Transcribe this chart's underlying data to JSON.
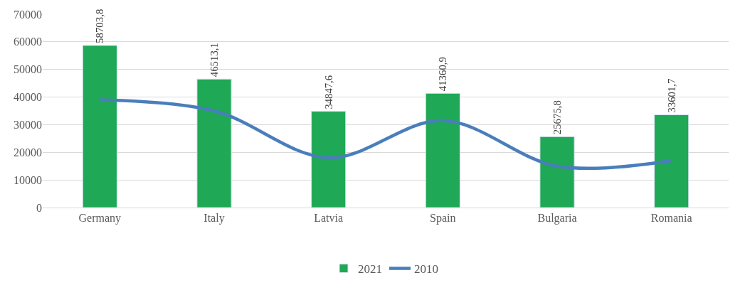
{
  "chart_data": {
    "type": "bar",
    "categories": [
      "Germany",
      "Italy",
      "Latvia",
      "Spain",
      "Bulgaria",
      "Romania"
    ],
    "series": [
      {
        "name": "2021",
        "color": "#1fa855",
        "values": [
          58703.8,
          46513.1,
          34847.6,
          41360.9,
          25675.8,
          33601.7
        ],
        "value_labels": [
          "58703,8",
          "46513,1",
          "34847,6",
          "41360,9",
          "25675,8",
          "33601,7"
        ]
      },
      {
        "name": "2010",
        "type": "line",
        "color": "#4a7ebb",
        "values": [
          39000,
          35000,
          18000,
          31500,
          15000,
          17000
        ]
      }
    ],
    "ylim": [
      0,
      70000
    ],
    "yticks": [
      0,
      10000,
      20000,
      30000,
      40000,
      50000,
      60000,
      70000
    ],
    "grid": "y",
    "legend": "bottom",
    "marker": "none",
    "line_style": "solid"
  }
}
